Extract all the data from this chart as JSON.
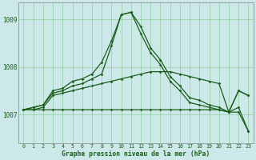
{
  "title": "Graphe pression niveau de la mer (hPa)",
  "background_color": "#cce8e8",
  "grid_color": "#44aa44",
  "line_color": "#1a5e1a",
  "xlim": [
    -0.5,
    23.5
  ],
  "ylim": [
    1006.4,
    1009.35
  ],
  "yticks": [
    1007,
    1008,
    1009
  ],
  "xticks": [
    0,
    1,
    2,
    3,
    4,
    5,
    6,
    7,
    8,
    9,
    10,
    11,
    12,
    13,
    14,
    15,
    16,
    17,
    18,
    19,
    20,
    21,
    22,
    23
  ],
  "lines": [
    [
      1007.1,
      1007.1,
      1007.1,
      1007.1,
      1007.1,
      1007.1,
      1007.1,
      1007.1,
      1007.1,
      1007.1,
      1007.1,
      1007.1,
      1007.1,
      1007.1,
      1007.1,
      1007.1,
      1007.1,
      1007.1,
      1007.1,
      1007.1,
      1007.1,
      1007.05,
      1007.05,
      1006.65
    ],
    [
      1007.1,
      1007.1,
      1007.15,
      1007.4,
      1007.45,
      1007.5,
      1007.55,
      1007.6,
      1007.65,
      1007.7,
      1007.75,
      1007.8,
      1007.85,
      1007.9,
      1007.9,
      1007.9,
      1007.85,
      1007.8,
      1007.75,
      1007.7,
      1007.65,
      1007.05,
      1007.15,
      1006.65
    ],
    [
      1007.1,
      1007.15,
      1007.2,
      1007.45,
      1007.5,
      1007.6,
      1007.65,
      1007.75,
      1007.85,
      1008.45,
      1009.1,
      1009.15,
      1008.7,
      1008.3,
      1008.05,
      1007.7,
      1007.5,
      1007.25,
      1007.2,
      1007.15,
      1007.1,
      1007.05,
      1007.5,
      1007.4
    ],
    [
      1007.1,
      1007.15,
      1007.2,
      1007.5,
      1007.55,
      1007.7,
      1007.75,
      1007.85,
      1008.1,
      1008.55,
      1009.1,
      1009.15,
      1008.85,
      1008.4,
      1008.15,
      1007.8,
      1007.6,
      1007.35,
      1007.3,
      1007.2,
      1007.15,
      1007.05,
      1007.5,
      1007.4
    ]
  ]
}
